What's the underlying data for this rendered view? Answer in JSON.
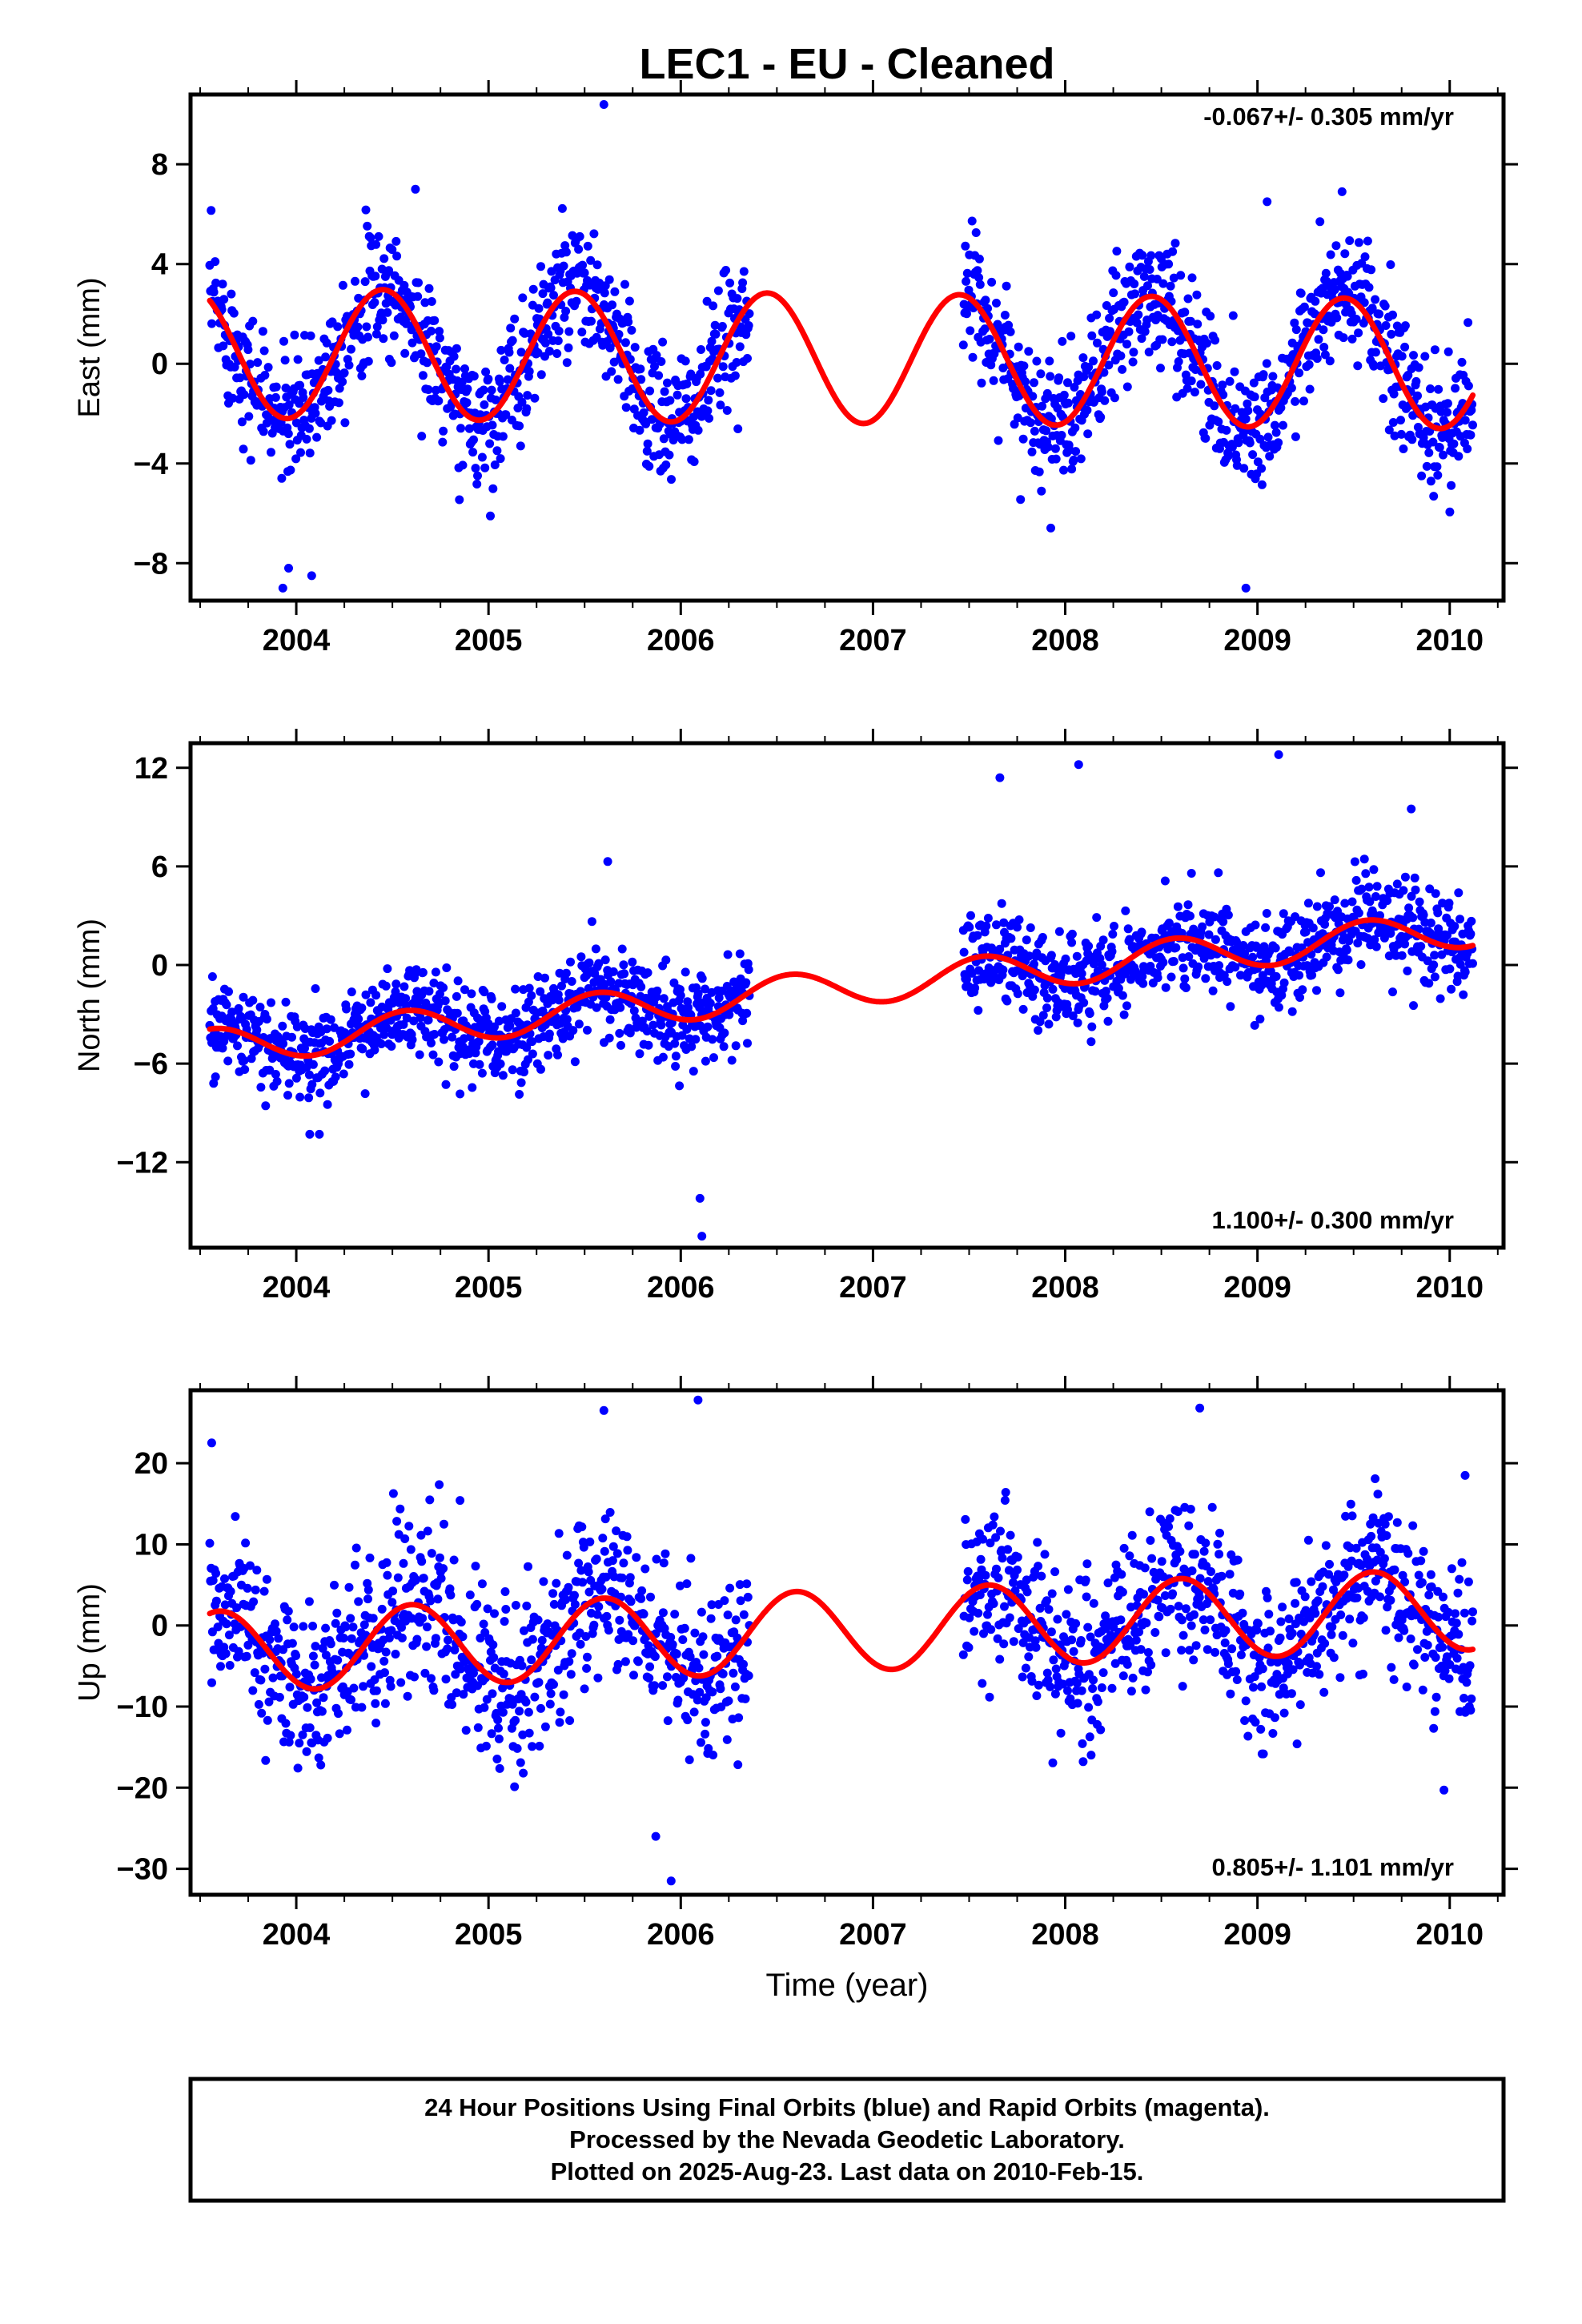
{
  "title": "LEC1  - EU - Cleaned",
  "xlabel": "Time (year)",
  "footer": {
    "line1": "24 Hour Positions Using Final Orbits (blue) and Rapid Orbits (magenta).",
    "line2": "Processed by the Nevada Geodetic Laboratory.",
    "line3": "Plotted on 2025-Aug-23. Last data on 2010-Feb-15."
  },
  "colors": {
    "points": "#0000ff",
    "fit": "#ff0000",
    "frame": "#000000"
  },
  "chart_data": [
    {
      "type": "scatter",
      "ylabel": "East (mm)",
      "rate": "-0.067+/- 0.305 mm/yr",
      "rate_position": "top-right",
      "xlim": [
        2003.45,
        2010.28
      ],
      "ylim": [
        -9.5,
        10.8
      ],
      "xticks": [
        "2004",
        "2005",
        "2006",
        "2007",
        "2008",
        "2009",
        "2010"
      ],
      "yticks": [
        {
          "v": 8,
          "l": "8"
        },
        {
          "v": 4,
          "l": "4"
        },
        {
          "v": 0,
          "l": "0"
        },
        {
          "v": -4,
          "l": "−4"
        },
        {
          "v": -8,
          "l": "−8"
        }
      ],
      "grid": false,
      "model": {
        "offset": 0.2,
        "trend": -0.067,
        "amplitude": 2.6,
        "peak_phase": 0.45,
        "fit_start": 2003.55,
        "fit_end": 2010.12
      },
      "observations": {
        "segments": [
          {
            "start": 2003.55,
            "end": 2006.36,
            "step": 0.0035
          },
          {
            "start": 2007.47,
            "end": 2010.12,
            "step": 0.0035
          }
        ],
        "scatter_sd": 1.3
      },
      "outliers": [
        [
          2005.6,
          10.4
        ],
        [
          2003.93,
          -9.0
        ],
        [
          2003.96,
          -8.2
        ],
        [
          2004.08,
          -8.5
        ],
        [
          2008.94,
          -9.0
        ],
        [
          2009.05,
          6.5
        ],
        [
          2004.62,
          7.0
        ],
        [
          2009.44,
          6.9
        ]
      ]
    },
    {
      "type": "scatter",
      "ylabel": "North (mm)",
      "rate": "1.100+/- 0.300 mm/yr",
      "rate_position": "bottom-right",
      "xlim": [
        2003.45,
        2010.28
      ],
      "ylim": [
        -17.2,
        13.5
      ],
      "xticks": [
        "2004",
        "2005",
        "2006",
        "2007",
        "2008",
        "2009",
        "2010"
      ],
      "yticks": [
        {
          "v": 12,
          "l": "12"
        },
        {
          "v": 6,
          "l": "6"
        },
        {
          "v": 0,
          "l": "0"
        },
        {
          "v": -6,
          "l": "−6"
        },
        {
          "v": -12,
          "l": "−12"
        }
      ],
      "grid": false,
      "model": {
        "offset": -1.2,
        "trend": 1.1,
        "amplitude": 1.1,
        "peak_phase": 0.57,
        "fit_start": 2003.55,
        "fit_end": 2010.12
      },
      "observations": {
        "segments": [
          {
            "start": 2003.55,
            "end": 2006.36,
            "step": 0.0035
          },
          {
            "start": 2007.47,
            "end": 2010.12,
            "step": 0.0035
          }
        ],
        "scatter_sd": 1.4
      },
      "outliers": [
        [
          2003.57,
          -7.2
        ],
        [
          2003.58,
          -6.8
        ],
        [
          2004.07,
          -10.3
        ],
        [
          2004.12,
          -10.3
        ],
        [
          2006.1,
          -14.2
        ],
        [
          2006.11,
          -16.5
        ],
        [
          2007.66,
          11.4
        ],
        [
          2008.07,
          12.2
        ],
        [
          2009.11,
          12.8
        ],
        [
          2009.8,
          9.5
        ],
        [
          2005.62,
          6.3
        ]
      ]
    },
    {
      "type": "scatter",
      "ylabel": "Up (mm)",
      "rate": "0.805+/- 1.101 mm/yr",
      "rate_position": "bottom-right",
      "xlim": [
        2003.45,
        2010.28
      ],
      "ylim": [
        -33.2,
        29.0
      ],
      "xticks": [
        "2004",
        "2005",
        "2006",
        "2007",
        "2008",
        "2009",
        "2010"
      ],
      "yticks": [
        {
          "v": 20,
          "l": "20"
        },
        {
          "v": 10,
          "l": "10"
        },
        {
          "v": 0,
          "l": "0"
        },
        {
          "v": -10,
          "l": "−10"
        },
        {
          "v": -20,
          "l": "−20"
        },
        {
          "v": -30,
          "l": "−30"
        }
      ],
      "grid": false,
      "model": {
        "offset": -0.5,
        "trend": 0.805,
        "amplitude": 5.0,
        "peak_phase": 0.6,
        "fit_start": 2003.55,
        "fit_end": 2010.12
      },
      "observations": {
        "segments": [
          {
            "start": 2003.55,
            "end": 2006.36,
            "step": 0.0035
          },
          {
            "start": 2007.47,
            "end": 2010.12,
            "step": 0.0035
          }
        ],
        "scatter_sd": 5.0
      },
      "outliers": [
        [
          2003.56,
          22.5
        ],
        [
          2005.6,
          26.5
        ],
        [
          2006.09,
          27.8
        ],
        [
          2008.7,
          26.8
        ],
        [
          2005.95,
          -31.5
        ],
        [
          2005.87,
          -26.0
        ],
        [
          2009.97,
          -20.3
        ],
        [
          2010.08,
          18.5
        ]
      ]
    }
  ]
}
